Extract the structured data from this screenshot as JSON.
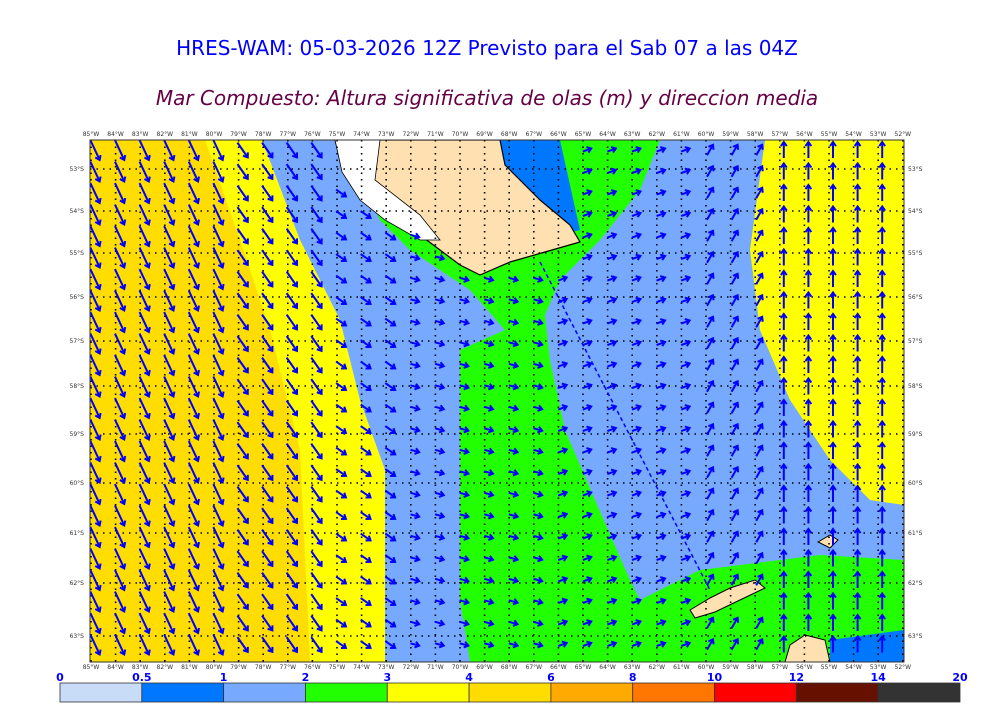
{
  "title": "HRES-WAM: 05-03-2026 12Z Previsto para el Sab 07 a las 04Z",
  "subtitle": "Mar Compuesto: Altura significativa de olas (m) y direccion media",
  "map": {
    "longitudes": [
      "85°W",
      "84°W",
      "83°W",
      "82°W",
      "81°W",
      "80°W",
      "79°W",
      "78°W",
      "77°W",
      "76°W",
      "75°W",
      "74°W",
      "73°W",
      "72°W",
      "71°W",
      "70°W",
      "69°W",
      "68°W",
      "67°W",
      "66°W",
      "65°W",
      "64°W",
      "63°W",
      "62°W",
      "61°W",
      "60°W",
      "59°W",
      "58°W",
      "57°W",
      "56°W",
      "55°W",
      "54°W",
      "53°W",
      "52°W"
    ],
    "latitudes": [
      "53°S",
      "54°S",
      "55°S",
      "56°S",
      "57°S",
      "58°S",
      "59°S",
      "60°S",
      "61°S",
      "62°S",
      "63°S"
    ],
    "arrow_color": "#0000ff"
  },
  "colorbar": {
    "labels": [
      "0",
      "0.5",
      "1",
      "2",
      "3",
      "4",
      "6",
      "8",
      "10",
      "12",
      "14",
      "20"
    ],
    "colors": [
      "#c8dcf8",
      "#0077ff",
      "#77aaff",
      "#22ff00",
      "#ffff00",
      "#ffdd00",
      "#ffaa00",
      "#ff7700",
      "#ff0000",
      "#661100",
      "#333333"
    ]
  }
}
